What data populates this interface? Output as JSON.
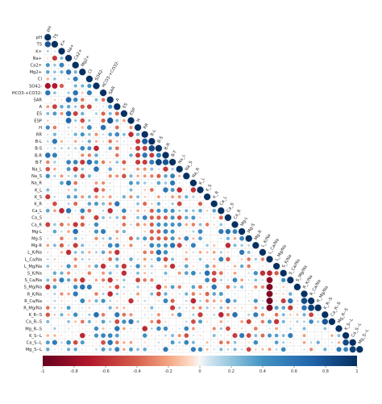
{
  "chart_data": {
    "type": "heatmap",
    "title": "",
    "variables": [
      "pH",
      "TS",
      "K+",
      "Na+",
      "Ca2+",
      "Mg2+",
      "Cl",
      "SO42-",
      "HCO3-+CO32-",
      "SAR",
      "A",
      "ES",
      "ESP",
      "H",
      "RR",
      "B-L",
      "B-S",
      "B-R",
      "B-T",
      "Na_L",
      "Na_S",
      "Na_R",
      "K_L",
      "K_S",
      "K_R",
      "Ca_L",
      "Ca_S",
      "Ca_R",
      "Mg-L",
      "Mg-S",
      "Mg-R",
      "L_K/Na",
      "L_Ca/Na",
      "L_Mg/Na",
      "S_K/Na",
      "S_Ca/Na",
      "S_Mg/Na",
      "R_K/Na",
      "R_Ca/Na",
      "R_Mg/Na",
      "K_R--S",
      "Ca_R--S",
      "Mg_R--S",
      "K_S--L",
      "Ca_S--L",
      "Mg_S--L"
    ],
    "matrix_shape": "lower-triangular",
    "diagonal_value": 1,
    "highlighted_correlations": [
      {
        "row": "TS",
        "col": "pH",
        "value": 0.8
      },
      {
        "row": "SO42-",
        "col": "pH",
        "value": -0.75
      },
      {
        "row": "SO42-",
        "col": "TS",
        "value": -0.7
      },
      {
        "row": "HCO3-+CO32-",
        "col": "pH",
        "value": 0.6
      },
      {
        "row": "SAR",
        "col": "Na+",
        "value": 0.7
      },
      {
        "row": "ES",
        "col": "Na+",
        "value": 0.65
      },
      {
        "row": "ESP",
        "col": "Na+",
        "value": 0.7
      },
      {
        "row": "ESP",
        "col": "SAR",
        "value": 0.8
      },
      {
        "row": "B-L",
        "col": "RR",
        "value": 0.75
      },
      {
        "row": "B-S",
        "col": "B-L",
        "value": 0.85
      },
      {
        "row": "B-T",
        "col": "B-S",
        "value": 0.9
      },
      {
        "row": "B-T",
        "col": "B-R",
        "value": 0.8
      },
      {
        "row": "S_K/Na",
        "col": "L_K/Na",
        "value": -0.6
      },
      {
        "row": "S_Ca/Na",
        "col": "L_Ca/Na",
        "value": -0.85
      },
      {
        "row": "S_Mg/Na",
        "col": "L_Ca/Na",
        "value": -0.9
      },
      {
        "row": "R_K/Na",
        "col": "L_Ca/Na",
        "value": -0.9
      },
      {
        "row": "R_Ca/Na",
        "col": "L_Ca/Na",
        "value": -0.95
      },
      {
        "row": "R_Mg/Na",
        "col": "L_Ca/Na",
        "value": -0.9
      },
      {
        "row": "R_Ca/Na",
        "col": "R_K/Na",
        "value": 0.85
      },
      {
        "row": "R_Mg/Na",
        "col": "R_Ca/Na",
        "value": 0.9
      },
      {
        "row": "Ca_R--S",
        "col": "K_R--S",
        "value": 0.8
      },
      {
        "row": "Ca_S--L",
        "col": "K_S--L",
        "value": 0.85
      },
      {
        "row": "Mg_S--L",
        "col": "Ca_S--L",
        "value": 0.9
      }
    ],
    "colorbar": {
      "ticks": [
        "-1",
        "-0.8",
        "-0.6",
        "-0.4",
        "-0.2",
        "0",
        "0.2",
        "0.4",
        "0.6",
        "0.8",
        "1"
      ],
      "range": [
        -1,
        1
      ],
      "low_color": "#67001f",
      "mid_color": "#f7f7f7",
      "high_color": "#053061"
    },
    "grid": true,
    "legend": "bottom"
  }
}
